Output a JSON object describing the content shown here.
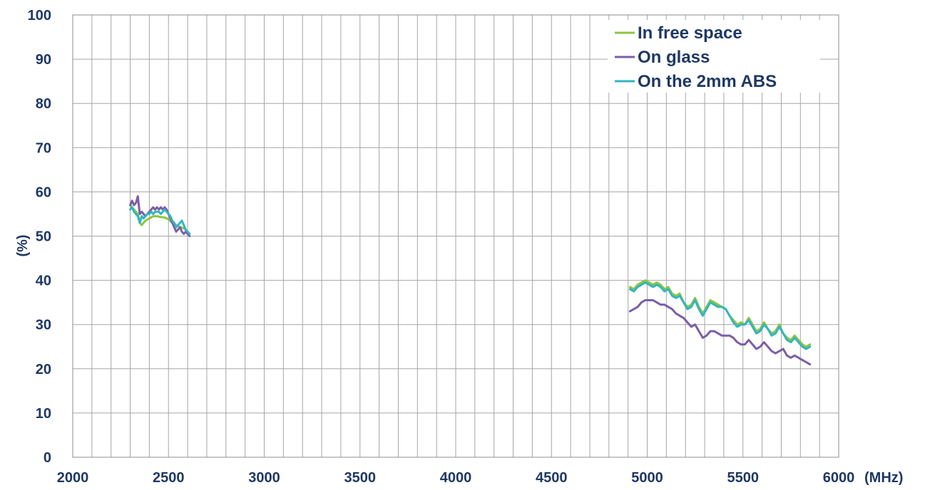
{
  "chart_data": {
    "type": "line",
    "xlabel": "(MHz)",
    "ylabel": "(%)",
    "xlim": [
      2000,
      6000
    ],
    "ylim": [
      0,
      100
    ],
    "x_ticks": [
      "2000",
      "2500",
      "3000",
      "3500",
      "4000",
      "4500",
      "5000",
      "5500",
      "6000"
    ],
    "y_ticks": [
      "0",
      "10",
      "20",
      "30",
      "40",
      "50",
      "60",
      "70",
      "80",
      "90",
      "100"
    ],
    "grid": true,
    "legend_position": "top-right",
    "series": [
      {
        "name": "In free space",
        "color": "#8dc63f",
        "segments": [
          [
            [
              2300,
              57.0
            ],
            [
              2320,
              56.0
            ],
            [
              2340,
              55.0
            ],
            [
              2350,
              53.0
            ],
            [
              2360,
              52.5
            ],
            [
              2380,
              53.5
            ],
            [
              2400,
              54.0
            ],
            [
              2420,
              54.5
            ],
            [
              2440,
              54.5
            ],
            [
              2460,
              54.3
            ],
            [
              2480,
              54.2
            ],
            [
              2500,
              53.8
            ],
            [
              2520,
              53.0
            ],
            [
              2540,
              52.5
            ],
            [
              2560,
              52.0
            ],
            [
              2580,
              51.8
            ],
            [
              2600,
              51.0
            ],
            [
              2610,
              50.5
            ]
          ],
          [
            [
              4910,
              38.5
            ],
            [
              4930,
              38.0
            ],
            [
              4950,
              39.0
            ],
            [
              4970,
              39.5
            ],
            [
              4990,
              40.0
            ],
            [
              5010,
              39.5
            ],
            [
              5030,
              39.0
            ],
            [
              5050,
              39.5
            ],
            [
              5070,
              39.0
            ],
            [
              5090,
              38.0
            ],
            [
              5110,
              38.5
            ],
            [
              5130,
              37.0
            ],
            [
              5150,
              36.5
            ],
            [
              5170,
              37.0
            ],
            [
              5190,
              35.0
            ],
            [
              5210,
              34.0
            ],
            [
              5230,
              34.5
            ],
            [
              5250,
              36.0
            ],
            [
              5270,
              34.0
            ],
            [
              5290,
              32.5
            ],
            [
              5310,
              34.0
            ],
            [
              5330,
              35.5
            ],
            [
              5350,
              35.0
            ],
            [
              5370,
              34.5
            ],
            [
              5390,
              34.0
            ],
            [
              5410,
              33.5
            ],
            [
              5430,
              32.0
            ],
            [
              5450,
              31.0
            ],
            [
              5470,
              30.0
            ],
            [
              5490,
              30.5
            ],
            [
              5510,
              30.0
            ],
            [
              5530,
              31.5
            ],
            [
              5550,
              30.0
            ],
            [
              5570,
              28.5
            ],
            [
              5590,
              29.0
            ],
            [
              5610,
              30.5
            ],
            [
              5630,
              29.0
            ],
            [
              5650,
              28.0
            ],
            [
              5670,
              28.5
            ],
            [
              5690,
              30.0
            ],
            [
              5710,
              28.0
            ],
            [
              5730,
              27.0
            ],
            [
              5750,
              26.5
            ],
            [
              5770,
              27.5
            ],
            [
              5790,
              26.5
            ],
            [
              5810,
              25.5
            ],
            [
              5830,
              25.0
            ],
            [
              5850,
              25.5
            ]
          ]
        ]
      },
      {
        "name": "On glass",
        "color": "#7b5ea7",
        "segments": [
          [
            [
              2300,
              57.0
            ],
            [
              2310,
              58.0
            ],
            [
              2320,
              57.0
            ],
            [
              2330,
              57.5
            ],
            [
              2340,
              59.0
            ],
            [
              2345,
              57.0
            ],
            [
              2350,
              55.0
            ],
            [
              2360,
              55.5
            ],
            [
              2370,
              55.0
            ],
            [
              2380,
              54.5
            ],
            [
              2390,
              55.0
            ],
            [
              2400,
              55.5
            ],
            [
              2410,
              56.0
            ],
            [
              2420,
              56.5
            ],
            [
              2430,
              56.0
            ],
            [
              2440,
              56.5
            ],
            [
              2450,
              56.0
            ],
            [
              2460,
              56.5
            ],
            [
              2470,
              56.0
            ],
            [
              2480,
              56.5
            ],
            [
              2490,
              56.0
            ],
            [
              2500,
              55.0
            ],
            [
              2510,
              54.0
            ],
            [
              2520,
              53.0
            ],
            [
              2530,
              52.0
            ],
            [
              2540,
              51.0
            ],
            [
              2550,
              51.5
            ],
            [
              2560,
              52.0
            ],
            [
              2570,
              51.0
            ],
            [
              2580,
              50.5
            ],
            [
              2590,
              51.0
            ],
            [
              2600,
              50.5
            ],
            [
              2610,
              50.0
            ]
          ],
          [
            [
              4910,
              33.0
            ],
            [
              4930,
              33.5
            ],
            [
              4950,
              34.0
            ],
            [
              4970,
              35.0
            ],
            [
              4990,
              35.5
            ],
            [
              5010,
              35.5
            ],
            [
              5030,
              35.5
            ],
            [
              5050,
              35.0
            ],
            [
              5070,
              34.5
            ],
            [
              5090,
              34.5
            ],
            [
              5110,
              34.0
            ],
            [
              5130,
              33.5
            ],
            [
              5150,
              32.5
            ],
            [
              5170,
              32.0
            ],
            [
              5190,
              31.5
            ],
            [
              5210,
              30.5
            ],
            [
              5230,
              29.5
            ],
            [
              5250,
              30.0
            ],
            [
              5270,
              28.5
            ],
            [
              5290,
              27.0
            ],
            [
              5310,
              27.5
            ],
            [
              5330,
              28.5
            ],
            [
              5350,
              28.5
            ],
            [
              5370,
              28.0
            ],
            [
              5390,
              27.5
            ],
            [
              5410,
              27.5
            ],
            [
              5430,
              27.5
            ],
            [
              5450,
              27.0
            ],
            [
              5470,
              26.0
            ],
            [
              5490,
              25.5
            ],
            [
              5510,
              25.5
            ],
            [
              5530,
              26.5
            ],
            [
              5550,
              25.5
            ],
            [
              5570,
              24.5
            ],
            [
              5590,
              25.0
            ],
            [
              5610,
              26.0
            ],
            [
              5630,
              25.0
            ],
            [
              5650,
              24.0
            ],
            [
              5670,
              23.5
            ],
            [
              5690,
              24.0
            ],
            [
              5710,
              24.5
            ],
            [
              5730,
              23.0
            ],
            [
              5750,
              22.5
            ],
            [
              5770,
              23.0
            ],
            [
              5790,
              22.5
            ],
            [
              5810,
              22.0
            ],
            [
              5830,
              21.5
            ],
            [
              5850,
              21.0
            ]
          ]
        ]
      },
      {
        "name": "On the 2mm ABS",
        "color": "#33b5c2",
        "segments": [
          [
            [
              2300,
              56.0
            ],
            [
              2310,
              56.5
            ],
            [
              2320,
              55.5
            ],
            [
              2330,
              55.0
            ],
            [
              2340,
              54.5
            ],
            [
              2350,
              53.0
            ],
            [
              2360,
              54.5
            ],
            [
              2370,
              54.0
            ],
            [
              2380,
              54.5
            ],
            [
              2390,
              55.0
            ],
            [
              2400,
              55.0
            ],
            [
              2410,
              55.5
            ],
            [
              2420,
              55.0
            ],
            [
              2430,
              55.5
            ],
            [
              2440,
              55.5
            ],
            [
              2450,
              55.5
            ],
            [
              2460,
              55.0
            ],
            [
              2470,
              55.5
            ],
            [
              2480,
              56.0
            ],
            [
              2490,
              55.5
            ],
            [
              2500,
              55.0
            ],
            [
              2510,
              54.5
            ],
            [
              2520,
              53.5
            ],
            [
              2530,
              53.0
            ],
            [
              2540,
              52.0
            ],
            [
              2550,
              52.5
            ],
            [
              2560,
              53.0
            ],
            [
              2570,
              53.5
            ],
            [
              2580,
              52.5
            ],
            [
              2590,
              51.5
            ],
            [
              2600,
              51.0
            ],
            [
              2610,
              50.5
            ]
          ],
          [
            [
              4910,
              38.0
            ],
            [
              4930,
              37.5
            ],
            [
              4950,
              38.5
            ],
            [
              4970,
              39.0
            ],
            [
              4990,
              39.5
            ],
            [
              5010,
              39.0
            ],
            [
              5030,
              38.5
            ],
            [
              5050,
              39.0
            ],
            [
              5070,
              38.5
            ],
            [
              5090,
              37.5
            ],
            [
              5110,
              38.0
            ],
            [
              5130,
              36.5
            ],
            [
              5150,
              36.0
            ],
            [
              5170,
              36.5
            ],
            [
              5190,
              35.0
            ],
            [
              5210,
              33.5
            ],
            [
              5230,
              34.0
            ],
            [
              5250,
              35.5
            ],
            [
              5270,
              33.5
            ],
            [
              5290,
              32.0
            ],
            [
              5310,
              33.5
            ],
            [
              5330,
              35.0
            ],
            [
              5350,
              34.5
            ],
            [
              5370,
              34.0
            ],
            [
              5390,
              34.0
            ],
            [
              5410,
              33.5
            ],
            [
              5430,
              32.0
            ],
            [
              5450,
              30.5
            ],
            [
              5470,
              29.5
            ],
            [
              5490,
              30.0
            ],
            [
              5510,
              30.0
            ],
            [
              5530,
              31.0
            ],
            [
              5550,
              29.5
            ],
            [
              5570,
              28.0
            ],
            [
              5590,
              28.5
            ],
            [
              5610,
              30.0
            ],
            [
              5630,
              29.0
            ],
            [
              5650,
              27.5
            ],
            [
              5670,
              28.0
            ],
            [
              5690,
              29.5
            ],
            [
              5710,
              28.0
            ],
            [
              5730,
              26.5
            ],
            [
              5750,
              26.0
            ],
            [
              5770,
              27.0
            ],
            [
              5790,
              26.0
            ],
            [
              5810,
              25.0
            ],
            [
              5830,
              24.5
            ],
            [
              5850,
              25.0
            ]
          ]
        ]
      }
    ]
  }
}
